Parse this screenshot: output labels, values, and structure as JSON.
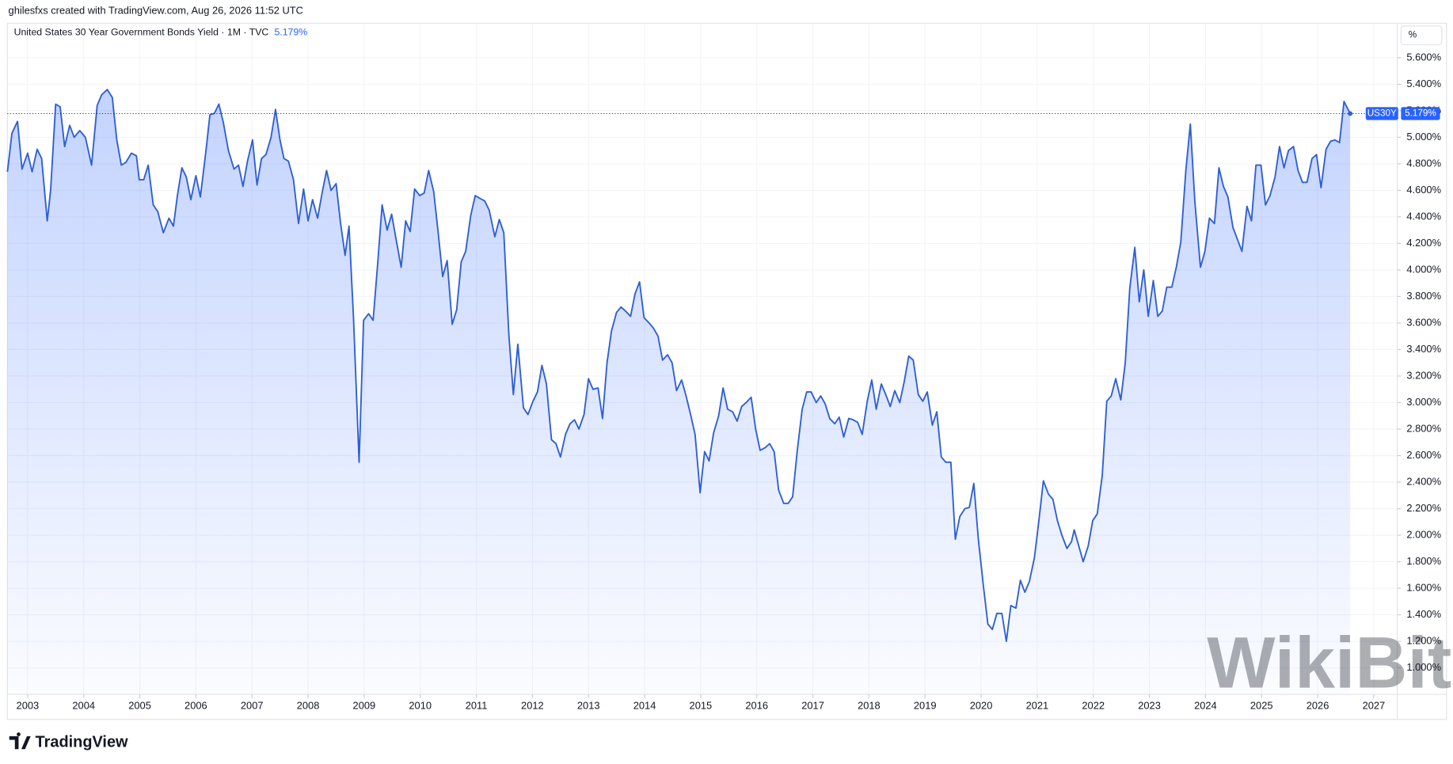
{
  "header": {
    "credit": "ghilesfxs created with TradingView.com, Aug 26, 2026 11:52 UTC",
    "logo": "TradingView",
    "watermark": "WikiBit"
  },
  "chart_data": {
    "type": "area",
    "title": "United States 30 Year Government Bonds Yield · 1M · TVC",
    "legend_value": "5.179%",
    "y_unit": "%",
    "x": [
      2002.64,
      2002.72,
      2002.82,
      2002.9,
      2003.0,
      2003.08,
      2003.17,
      2003.25,
      2003.35,
      2003.41,
      2003.5,
      2003.58,
      2003.66,
      2003.75,
      2003.83,
      2003.93,
      2004.03,
      2004.14,
      2004.24,
      2004.32,
      2004.42,
      2004.51,
      2004.59,
      2004.67,
      2004.75,
      2004.85,
      2004.94,
      2004.99,
      2005.07,
      2005.15,
      2005.24,
      2005.32,
      2005.42,
      2005.52,
      2005.6,
      2005.67,
      2005.75,
      2005.83,
      2005.91,
      2006.0,
      2006.08,
      2006.18,
      2006.25,
      2006.33,
      2006.41,
      2006.49,
      2006.58,
      2006.68,
      2006.76,
      2006.84,
      2006.92,
      2007.01,
      2007.09,
      2007.17,
      2007.25,
      2007.34,
      2007.42,
      2007.5,
      2007.57,
      2007.65,
      2007.74,
      2007.83,
      2007.92,
      2008.0,
      2008.08,
      2008.17,
      2008.25,
      2008.33,
      2008.41,
      2008.5,
      2008.58,
      2008.66,
      2008.73,
      2008.81,
      2008.91,
      2008.99,
      2009.08,
      2009.16,
      2009.24,
      2009.32,
      2009.41,
      2009.49,
      2009.57,
      2009.66,
      2009.74,
      2009.82,
      2009.9,
      2009.99,
      2010.07,
      2010.15,
      2010.24,
      2010.32,
      2010.4,
      2010.48,
      2010.57,
      2010.65,
      2010.73,
      2010.81,
      2010.9,
      2010.98,
      2011.06,
      2011.15,
      2011.23,
      2011.33,
      2011.41,
      2011.49,
      2011.58,
      2011.66,
      2011.74,
      2011.84,
      2011.92,
      2012.01,
      2012.09,
      2012.17,
      2012.25,
      2012.34,
      2012.42,
      2012.5,
      2012.59,
      2012.67,
      2012.75,
      2012.83,
      2012.92,
      2013.0,
      2013.08,
      2013.17,
      2013.25,
      2013.33,
      2013.41,
      2013.5,
      2013.58,
      2013.66,
      2013.75,
      2013.83,
      2013.91,
      2013.99,
      2014.08,
      2014.16,
      2014.24,
      2014.32,
      2014.41,
      2014.49,
      2014.57,
      2014.66,
      2014.74,
      2014.82,
      2014.9,
      2014.99,
      2015.07,
      2015.15,
      2015.23,
      2015.32,
      2015.4,
      2015.48,
      2015.57,
      2015.65,
      2015.73,
      2015.81,
      2015.9,
      2015.98,
      2016.06,
      2016.15,
      2016.23,
      2016.31,
      2016.39,
      2016.48,
      2016.56,
      2016.64,
      2016.72,
      2016.81,
      2016.89,
      2016.97,
      2017.06,
      2017.14,
      2017.22,
      2017.3,
      2017.39,
      2017.47,
      2017.55,
      2017.64,
      2017.72,
      2017.8,
      2017.88,
      2017.97,
      2018.05,
      2018.13,
      2018.22,
      2018.3,
      2018.38,
      2018.46,
      2018.55,
      2018.63,
      2018.71,
      2018.79,
      2018.88,
      2018.96,
      2019.04,
      2019.13,
      2019.21,
      2019.29,
      2019.37,
      2019.46,
      2019.54,
      2019.62,
      2019.71,
      2019.79,
      2019.87,
      2019.95,
      2020.04,
      2020.12,
      2020.2,
      2020.28,
      2020.37,
      2020.45,
      2020.53,
      2020.62,
      2020.7,
      2020.78,
      2020.86,
      2020.95,
      2021.03,
      2021.11,
      2021.2,
      2021.28,
      2021.36,
      2021.44,
      2021.53,
      2021.61,
      2021.66,
      2021.74,
      2021.82,
      2021.91,
      2021.99,
      2022.07,
      2022.16,
      2022.24,
      2022.32,
      2022.4,
      2022.49,
      2022.57,
      2022.65,
      2022.74,
      2022.82,
      2022.9,
      2022.98,
      2023.07,
      2023.15,
      2023.23,
      2023.31,
      2023.4,
      2023.48,
      2023.56,
      2023.65,
      2023.73,
      2023.81,
      2023.91,
      2023.99,
      2024.07,
      2024.16,
      2024.24,
      2024.32,
      2024.4,
      2024.49,
      2024.57,
      2024.65,
      2024.74,
      2024.82,
      2024.9,
      2024.99,
      2025.07,
      2025.15,
      2025.24,
      2025.32,
      2025.4,
      2025.48,
      2025.57,
      2025.65,
      2025.73,
      2025.81,
      2025.9,
      2025.98,
      2026.06,
      2026.15,
      2026.23,
      2026.31,
      2026.39,
      2026.47,
      2026.58
    ],
    "series": [
      {
        "name": "US30Y",
        "color": "#2f5fd6",
        "last_value_label": "5.179%",
        "values": [
          4.74,
          5.03,
          5.12,
          4.76,
          4.88,
          4.74,
          4.91,
          4.84,
          4.37,
          4.6,
          5.25,
          5.23,
          4.93,
          5.09,
          5.0,
          5.05,
          5.0,
          4.79,
          5.24,
          5.32,
          5.36,
          5.3,
          4.98,
          4.79,
          4.81,
          4.88,
          4.86,
          4.68,
          4.68,
          4.79,
          4.49,
          4.44,
          4.28,
          4.39,
          4.33,
          4.56,
          4.77,
          4.7,
          4.53,
          4.71,
          4.55,
          4.9,
          5.17,
          5.18,
          5.25,
          5.11,
          4.9,
          4.76,
          4.79,
          4.63,
          4.82,
          4.98,
          4.64,
          4.84,
          4.87,
          5.0,
          5.21,
          4.98,
          4.84,
          4.82,
          4.68,
          4.35,
          4.61,
          4.37,
          4.53,
          4.39,
          4.58,
          4.75,
          4.6,
          4.65,
          4.35,
          4.11,
          4.33,
          3.64,
          2.55,
          3.62,
          3.67,
          3.62,
          4.04,
          4.49,
          4.3,
          4.42,
          4.23,
          4.02,
          4.37,
          4.29,
          4.61,
          4.56,
          4.58,
          4.75,
          4.59,
          4.28,
          3.95,
          4.07,
          3.59,
          3.7,
          4.06,
          4.14,
          4.41,
          4.56,
          4.54,
          4.52,
          4.45,
          4.25,
          4.38,
          4.28,
          3.51,
          3.06,
          3.44,
          2.96,
          2.91,
          3.01,
          3.08,
          3.28,
          3.14,
          2.72,
          2.69,
          2.59,
          2.76,
          2.84,
          2.87,
          2.8,
          2.91,
          3.18,
          3.1,
          3.11,
          2.88,
          3.3,
          3.54,
          3.68,
          3.72,
          3.69,
          3.65,
          3.82,
          3.91,
          3.64,
          3.6,
          3.56,
          3.5,
          3.32,
          3.36,
          3.3,
          3.09,
          3.17,
          3.05,
          2.91,
          2.76,
          2.32,
          2.63,
          2.56,
          2.77,
          2.9,
          3.11,
          2.95,
          2.93,
          2.86,
          2.97,
          3.0,
          3.04,
          2.8,
          2.64,
          2.66,
          2.69,
          2.63,
          2.34,
          2.24,
          2.24,
          2.29,
          2.63,
          2.95,
          3.08,
          3.08,
          3.0,
          3.05,
          2.99,
          2.88,
          2.84,
          2.89,
          2.74,
          2.88,
          2.87,
          2.85,
          2.76,
          3.01,
          3.17,
          2.95,
          3.14,
          3.06,
          2.97,
          3.09,
          3.0,
          3.16,
          3.35,
          3.32,
          3.06,
          3.01,
          3.08,
          2.83,
          2.93,
          2.59,
          2.55,
          2.55,
          1.97,
          2.14,
          2.2,
          2.21,
          2.39,
          1.97,
          1.62,
          1.33,
          1.29,
          1.41,
          1.41,
          1.2,
          1.47,
          1.45,
          1.66,
          1.57,
          1.65,
          1.83,
          2.11,
          2.41,
          2.31,
          2.27,
          2.11,
          2.0,
          1.9,
          1.95,
          2.04,
          1.92,
          1.8,
          1.92,
          2.11,
          2.16,
          2.45,
          3.01,
          3.05,
          3.18,
          3.02,
          3.3,
          3.86,
          4.17,
          3.76,
          4.0,
          3.65,
          3.92,
          3.65,
          3.69,
          3.87,
          3.87,
          4.02,
          4.21,
          4.75,
          5.1,
          4.52,
          4.02,
          4.14,
          4.39,
          4.35,
          4.77,
          4.63,
          4.55,
          4.32,
          4.23,
          4.14,
          4.48,
          4.37,
          4.79,
          4.79,
          4.49,
          4.56,
          4.7,
          4.93,
          4.77,
          4.9,
          4.93,
          4.75,
          4.66,
          4.66,
          4.84,
          4.87,
          4.62,
          4.91,
          4.97,
          4.98,
          4.96,
          5.27,
          5.179
        ]
      }
    ],
    "xlim": [
      2002.64,
      2027.42
    ],
    "xticks": [
      2003,
      2004,
      2005,
      2006,
      2007,
      2008,
      2009,
      2010,
      2011,
      2012,
      2013,
      2014,
      2015,
      2016,
      2017,
      2018,
      2019,
      2020,
      2021,
      2022,
      2023,
      2024,
      2025,
      2026,
      2027
    ],
    "ylim": [
      0.8,
      5.86
    ],
    "yticks": [
      {
        "value": 1.0,
        "label": "1.000%"
      },
      {
        "value": 1.2,
        "label": "1.200%"
      },
      {
        "value": 1.4,
        "label": "1.400%"
      },
      {
        "value": 1.6,
        "label": "1.600%"
      },
      {
        "value": 1.8,
        "label": "1.800%"
      },
      {
        "value": 2.0,
        "label": "2.000%"
      },
      {
        "value": 2.2,
        "label": "2.200%"
      },
      {
        "value": 2.4,
        "label": "2.400%"
      },
      {
        "value": 2.6,
        "label": "2.600%"
      },
      {
        "value": 2.8,
        "label": "2.800%"
      },
      {
        "value": 3.0,
        "label": "3.000%"
      },
      {
        "value": 3.2,
        "label": "3.200%"
      },
      {
        "value": 3.4,
        "label": "3.400%"
      },
      {
        "value": 3.6,
        "label": "3.600%"
      },
      {
        "value": 3.8,
        "label": "3.800%"
      },
      {
        "value": 4.0,
        "label": "4.000%"
      },
      {
        "value": 4.2,
        "label": "4.200%"
      },
      {
        "value": 4.4,
        "label": "4.400%"
      },
      {
        "value": 4.6,
        "label": "4.600%"
      },
      {
        "value": 4.8,
        "label": "4.800%"
      },
      {
        "value": 5.0,
        "label": "5.000%"
      },
      {
        "value": 5.2,
        "label": "5.200%"
      },
      {
        "value": 5.4,
        "label": "5.400%"
      },
      {
        "value": 5.6,
        "label": "5.600%"
      }
    ],
    "grid": true
  }
}
